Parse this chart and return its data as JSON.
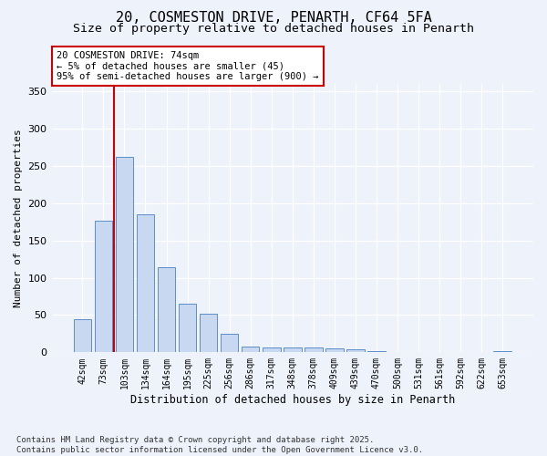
{
  "title1": "20, COSMESTON DRIVE, PENARTH, CF64 5FA",
  "title2": "Size of property relative to detached houses in Penarth",
  "xlabel": "Distribution of detached houses by size in Penarth",
  "ylabel": "Number of detached properties",
  "categories": [
    "42sqm",
    "73sqm",
    "103sqm",
    "134sqm",
    "164sqm",
    "195sqm",
    "225sqm",
    "256sqm",
    "286sqm",
    "317sqm",
    "348sqm",
    "378sqm",
    "409sqm",
    "439sqm",
    "470sqm",
    "500sqm",
    "531sqm",
    "561sqm",
    "592sqm",
    "622sqm",
    "653sqm"
  ],
  "values": [
    44,
    176,
    262,
    185,
    114,
    65,
    52,
    25,
    8,
    6,
    7,
    7,
    5,
    4,
    2,
    1,
    1,
    0,
    0,
    0,
    2
  ],
  "bar_color": "#c8d8f0",
  "bar_edge_color": "#5b8fc9",
  "annotation_text": "20 COSMESTON DRIVE: 74sqm\n← 5% of detached houses are smaller (45)\n95% of semi-detached houses are larger (900) →",
  "ann_edge_color": "#cc0000",
  "vline_color": "#cc0000",
  "vline_x": 1.5,
  "footnote_line1": "Contains HM Land Registry data © Crown copyright and database right 2025.",
  "footnote_line2": "Contains public sector information licensed under the Open Government Licence v3.0.",
  "bg_color": "#eef2fa",
  "ylim_max": 360,
  "yticks": [
    0,
    50,
    100,
    150,
    200,
    250,
    300,
    350
  ]
}
